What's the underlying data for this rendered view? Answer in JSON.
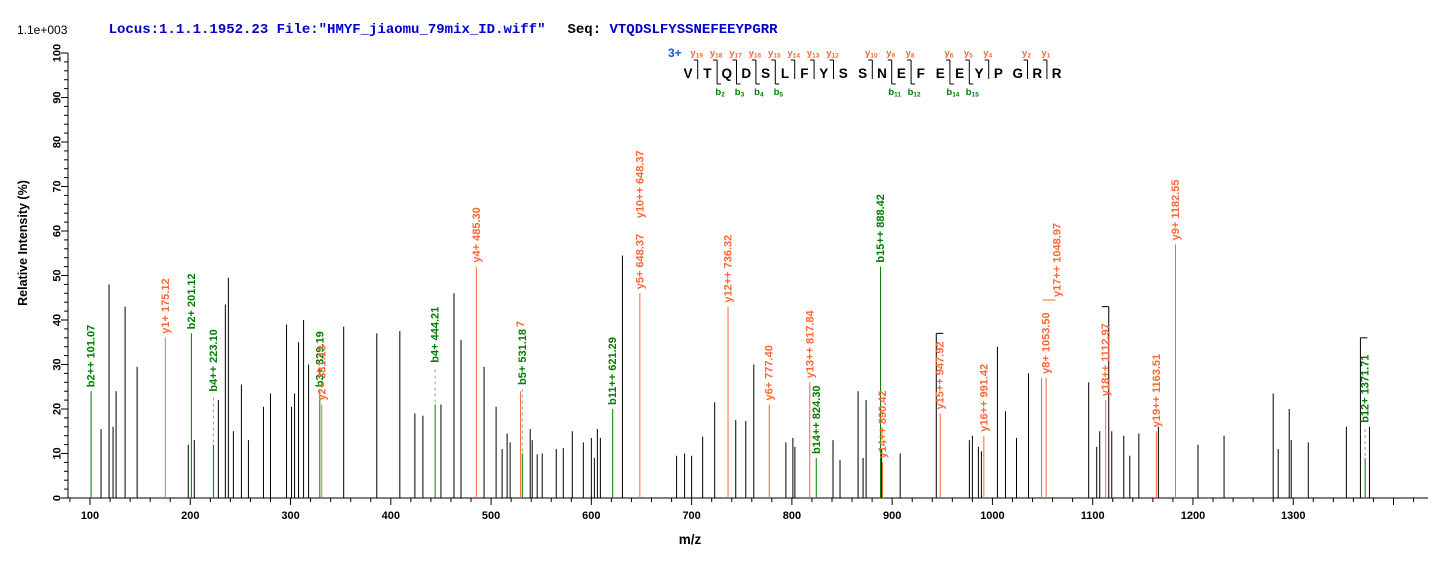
{
  "header": {
    "locus_file": "Locus:1.1.1.1952.23 File:\"HMYF_jiaomu_79mix_ID.wiff\"",
    "seq_label": "Seq:",
    "sequence": "VTQDSLFYSSNEFEEYPGRR",
    "intensity_scale": "1.1e+003"
  },
  "colors": {
    "y_ion": "#ff6633",
    "b_ion": "#007b00",
    "header_blue": "#0000cd",
    "charge_blue": "#1155ee",
    "peak_black": "#000000",
    "leader_gray": "#9a9a9a"
  },
  "chart_data": {
    "type": "bar",
    "subtype": "ms2-fragment-spectrum",
    "xlabel": "m/z",
    "ylabel": "Relative  Intensity (%)",
    "xlim": [
      78,
      1436
    ],
    "ylim": [
      0,
      100
    ],
    "axis": {
      "x_labeled_ticks": [
        100,
        200,
        300,
        400,
        500,
        600,
        700,
        800,
        900,
        1000,
        1100,
        1200,
        1300
      ],
      "x_minor_step": 20,
      "x_tick_min": 80,
      "x_tick_max": 1420,
      "y_labeled_step": 10,
      "y_minor_step": 2
    },
    "precursor_charge": "3+",
    "peptide": "VTQDSLFYSSNEFEEYPGRR",
    "sequence_map": {
      "y_ions": [
        [
          19,
          1
        ],
        [
          18,
          2
        ],
        [
          17,
          3
        ],
        [
          16,
          4
        ],
        [
          15,
          5
        ],
        [
          14,
          6
        ],
        [
          13,
          7
        ],
        [
          12,
          8
        ],
        [
          10,
          10
        ],
        [
          9,
          11
        ],
        [
          8,
          12
        ],
        [
          6,
          14
        ],
        [
          5,
          15
        ],
        [
          4,
          16
        ],
        [
          2,
          18
        ],
        [
          1,
          19
        ]
      ],
      "b_ions": [
        [
          2,
          2
        ],
        [
          3,
          3
        ],
        [
          4,
          4
        ],
        [
          5,
          5
        ],
        [
          11,
          11
        ],
        [
          12,
          12
        ],
        [
          14,
          14
        ],
        [
          15,
          15
        ]
      ]
    },
    "labeled_peaks": [
      {
        "ion": "b2++",
        "mz": 101.07,
        "intensity": 24,
        "text": "b2++ 101.07",
        "series": "b"
      },
      {
        "ion": "y1+",
        "mz": 175.12,
        "intensity": 36,
        "text": "y1+ 175.12",
        "series": "y"
      },
      {
        "ion": "b2+",
        "mz": 201.12,
        "intensity": 37,
        "text": "b2+ 201.12",
        "series": "b"
      },
      {
        "ion": "b4++",
        "mz": 223.1,
        "intensity": 12,
        "label_at": 23,
        "dashed_leader": true,
        "text": "b4++ 223.10",
        "series": "b"
      },
      {
        "ion": "b3+",
        "mz": 329.19,
        "intensity": 24,
        "text": "b3+ 329.19",
        "series": "b"
      },
      {
        "ion": "y2+",
        "mz": 331.13,
        "intensity": 21,
        "text": "y2+ 331.13",
        "series": "y"
      },
      {
        "ion": "b4+",
        "mz": 444.21,
        "intensity": 21,
        "label_at": 29.5,
        "dashed_leader": true,
        "text": "b4+ 444.21",
        "series": "b"
      },
      {
        "ion": "y4+",
        "mz": 485.3,
        "intensity": 52,
        "text": "y4+ 485.30",
        "series": "y"
      },
      {
        "ion": "unresolved",
        "mz": 529.4,
        "intensity": 24,
        "label_at": 37.5,
        "text": "7",
        "series": "y"
      },
      {
        "ion": "b5+",
        "mz": 531.18,
        "intensity": 10,
        "label_at": 24.5,
        "dashed_leader": true,
        "text": "b5+ 531.18",
        "series": "b"
      },
      {
        "ion": "b11++",
        "mz": 621.29,
        "intensity": 20,
        "text": "b11++ 621.29",
        "series": "b"
      },
      {
        "ion": "y5+",
        "mz": 648.37,
        "intensity": 46,
        "text": "y5+ 648.37",
        "stacked_label": "y10++ 648.37",
        "series": "y"
      },
      {
        "ion": "y12++",
        "mz": 736.32,
        "intensity": 43,
        "text": "y12++ 736.32",
        "series": "y"
      },
      {
        "ion": "y6+",
        "mz": 777.4,
        "intensity": 21,
        "text": "y6+ 777.40",
        "series": "y"
      },
      {
        "ion": "y13++",
        "mz": 817.84,
        "intensity": 26,
        "text": "y13++ 817.84",
        "series": "y"
      },
      {
        "ion": "b14++",
        "mz": 824.3,
        "intensity": 9,
        "text": "b14++ 824.30",
        "series": "b"
      },
      {
        "ion": "b15++",
        "mz": 888.42,
        "intensity": 52,
        "text": "b15++ 888.42",
        "series": "b"
      },
      {
        "ion": "y14++",
        "mz": 890.42,
        "intensity": 8,
        "text": "y14++ 890.42",
        "series": "y"
      },
      {
        "ion": "y15++",
        "mz": 947.92,
        "intensity": 19,
        "text": "y15++ 947.92",
        "series": "y"
      },
      {
        "ion": "y16++",
        "mz": 991.42,
        "intensity": 14,
        "text": "y16++ 991.42",
        "series": "y"
      },
      {
        "ion": "y17++",
        "mz": 1048.97,
        "intensity": 27,
        "offset_label": {
          "connector_intensity": 44.5,
          "dx": 14
        },
        "text": "y17++ 1048.97",
        "series": "y"
      },
      {
        "ion": "y8+",
        "mz": 1053.5,
        "intensity": 27,
        "text": "y8+ 1053.50",
        "series": "y"
      },
      {
        "ion": "y18++",
        "mz": 1112.97,
        "intensity": 22,
        "text": "y18++ 1112.97",
        "series": "y"
      },
      {
        "ion": "y19++",
        "mz": 1163.51,
        "intensity": 15,
        "text": "y19++ 1163.51",
        "series": "y"
      },
      {
        "ion": "y9+",
        "mz": 1182.55,
        "intensity": 57,
        "text": "y9+ 1182.55",
        "series": "y"
      },
      {
        "ion": "b12+",
        "mz": 1371.71,
        "intensity": 9,
        "label_at": 16,
        "dashed_leader": true,
        "text": "b12+ 1371.71",
        "series": "b"
      }
    ],
    "unlabeled_peaks": [
      [
        111,
        15.5
      ],
      [
        119,
        48
      ],
      [
        123,
        16
      ],
      [
        126,
        24
      ],
      [
        135,
        43
      ],
      [
        147,
        29.5
      ],
      [
        198,
        12
      ],
      [
        204,
        13
      ],
      [
        228,
        22
      ],
      [
        235,
        43.5
      ],
      [
        238,
        49.5
      ],
      [
        243,
        15
      ],
      [
        251,
        25.5
      ],
      [
        258,
        13
      ],
      [
        273,
        20.5
      ],
      [
        280,
        23.5
      ],
      [
        296,
        39
      ],
      [
        301,
        20.5
      ],
      [
        304,
        23.5
      ],
      [
        308,
        35
      ],
      [
        313,
        40
      ],
      [
        318,
        30
      ],
      [
        353,
        38.5
      ],
      [
        386,
        37
      ],
      [
        409,
        37.5
      ],
      [
        424,
        19
      ],
      [
        432,
        18.5
      ],
      [
        450,
        21
      ],
      [
        463,
        46
      ],
      [
        470,
        35.5
      ],
      [
        493,
        29.5
      ],
      [
        505,
        20.5
      ],
      [
        511,
        11
      ],
      [
        516,
        14.5
      ],
      [
        519,
        12.5
      ],
      [
        539,
        15.5
      ],
      [
        541,
        13
      ],
      [
        546,
        9.8
      ],
      [
        551,
        10
      ],
      [
        565,
        11
      ],
      [
        572,
        11.2
      ],
      [
        581,
        15
      ],
      [
        592,
        12.5
      ],
      [
        600,
        13.5
      ],
      [
        603,
        9
      ],
      [
        606,
        15.5
      ],
      [
        609,
        13.5
      ],
      [
        631,
        54.5
      ],
      [
        685,
        9.5
      ],
      [
        693,
        10
      ],
      [
        700,
        9.5
      ],
      [
        711,
        13.8
      ],
      [
        723,
        21.5
      ],
      [
        744,
        17.5
      ],
      [
        754,
        17.3
      ],
      [
        762,
        30
      ],
      [
        794,
        12.5
      ],
      [
        801,
        13.5
      ],
      [
        803,
        11.5
      ],
      [
        841,
        13
      ],
      [
        848,
        8.5
      ],
      [
        866,
        24
      ],
      [
        871,
        9
      ],
      [
        874,
        22
      ],
      [
        889.5,
        11
      ],
      [
        908,
        10
      ],
      [
        944,
        37
      ],
      [
        977,
        13
      ],
      [
        980,
        14
      ],
      [
        986,
        11.5
      ],
      [
        989,
        10.5
      ],
      [
        1005,
        34
      ],
      [
        1013,
        19.5
      ],
      [
        1024,
        13.5
      ],
      [
        1036,
        28
      ],
      [
        1096,
        26
      ],
      [
        1104,
        11.5
      ],
      [
        1107,
        15
      ],
      [
        1116,
        43
      ],
      [
        1119,
        15
      ],
      [
        1131,
        14
      ],
      [
        1137,
        9.5
      ],
      [
        1146,
        14.5
      ],
      [
        1165.5,
        16
      ],
      [
        1205,
        12
      ],
      [
        1231,
        14
      ],
      [
        1280,
        23.5
      ],
      [
        1285,
        11
      ],
      [
        1296,
        20
      ],
      [
        1298,
        13
      ],
      [
        1315,
        12.5
      ],
      [
        1353,
        16
      ],
      [
        1367,
        36
      ],
      [
        1376,
        16
      ]
    ],
    "capped_peaks": [
      [
        944,
        "r"
      ],
      [
        1116,
        "l"
      ],
      [
        1367,
        "r"
      ]
    ]
  }
}
